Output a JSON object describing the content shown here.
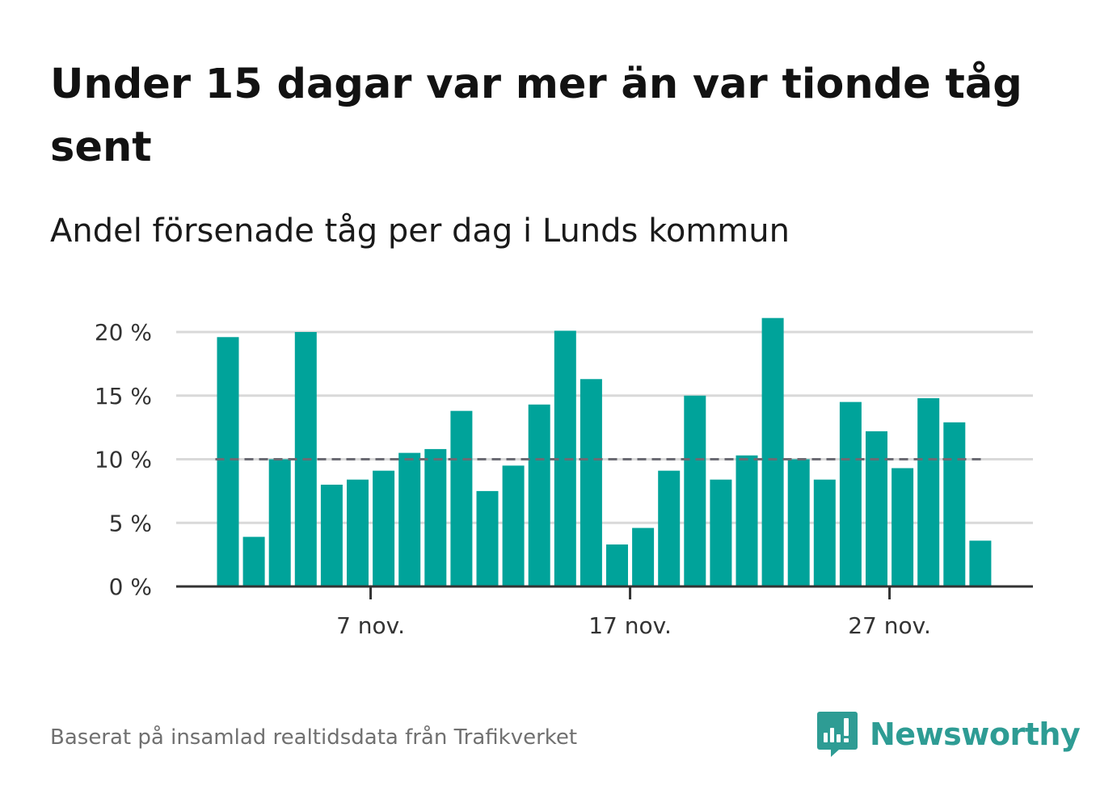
{
  "header": {
    "title": "Under 15 dagar var mer än var tionde tåg sent",
    "subtitle": "Andel försenade tåg per dag i Lunds kommun"
  },
  "footer": {
    "source": "Baserat på insamlad realtidsdata från Trafikverket",
    "brand": "Newsworthy"
  },
  "colors": {
    "bar": "#00a39a",
    "reference_line": "#6b6b73",
    "grid": "#d9d9d9",
    "axis": "#333333",
    "brand": "#2e9c94"
  },
  "chart_data": {
    "type": "bar",
    "x_start_day": 1,
    "x": [
      "1 nov.",
      "2 nov.",
      "3 nov.",
      "4 nov.",
      "5 nov.",
      "6 nov.",
      "7 nov.",
      "8 nov.",
      "9 nov.",
      "10 nov.",
      "11 nov.",
      "12 nov.",
      "13 nov.",
      "14 nov.",
      "15 nov.",
      "16 nov.",
      "17 nov.",
      "18 nov.",
      "19 nov.",
      "20 nov.",
      "21 nov.",
      "22 nov.",
      "23 nov.",
      "24 nov.",
      "25 nov.",
      "26 nov.",
      "27 nov.",
      "28 nov.",
      "29 nov.",
      "30 nov."
    ],
    "values": [
      19.6,
      3.9,
      10.0,
      20.0,
      8.0,
      8.4,
      9.1,
      10.5,
      10.8,
      13.8,
      7.5,
      9.5,
      14.3,
      20.1,
      16.3,
      3.3,
      4.6,
      9.1,
      15.0,
      8.4,
      10.3,
      21.1,
      10.0,
      8.4,
      14.5,
      12.2,
      9.3,
      14.8,
      12.9,
      3.6
    ],
    "xticks": [
      "7 nov.",
      "17 nov.",
      "27 nov."
    ],
    "yticks": [
      "0 %",
      "5 %",
      "10 %",
      "15 %",
      "20 %"
    ],
    "ylim": [
      0,
      22
    ],
    "reference_value": 10,
    "grid": true,
    "xlabel": "",
    "ylabel": ""
  }
}
